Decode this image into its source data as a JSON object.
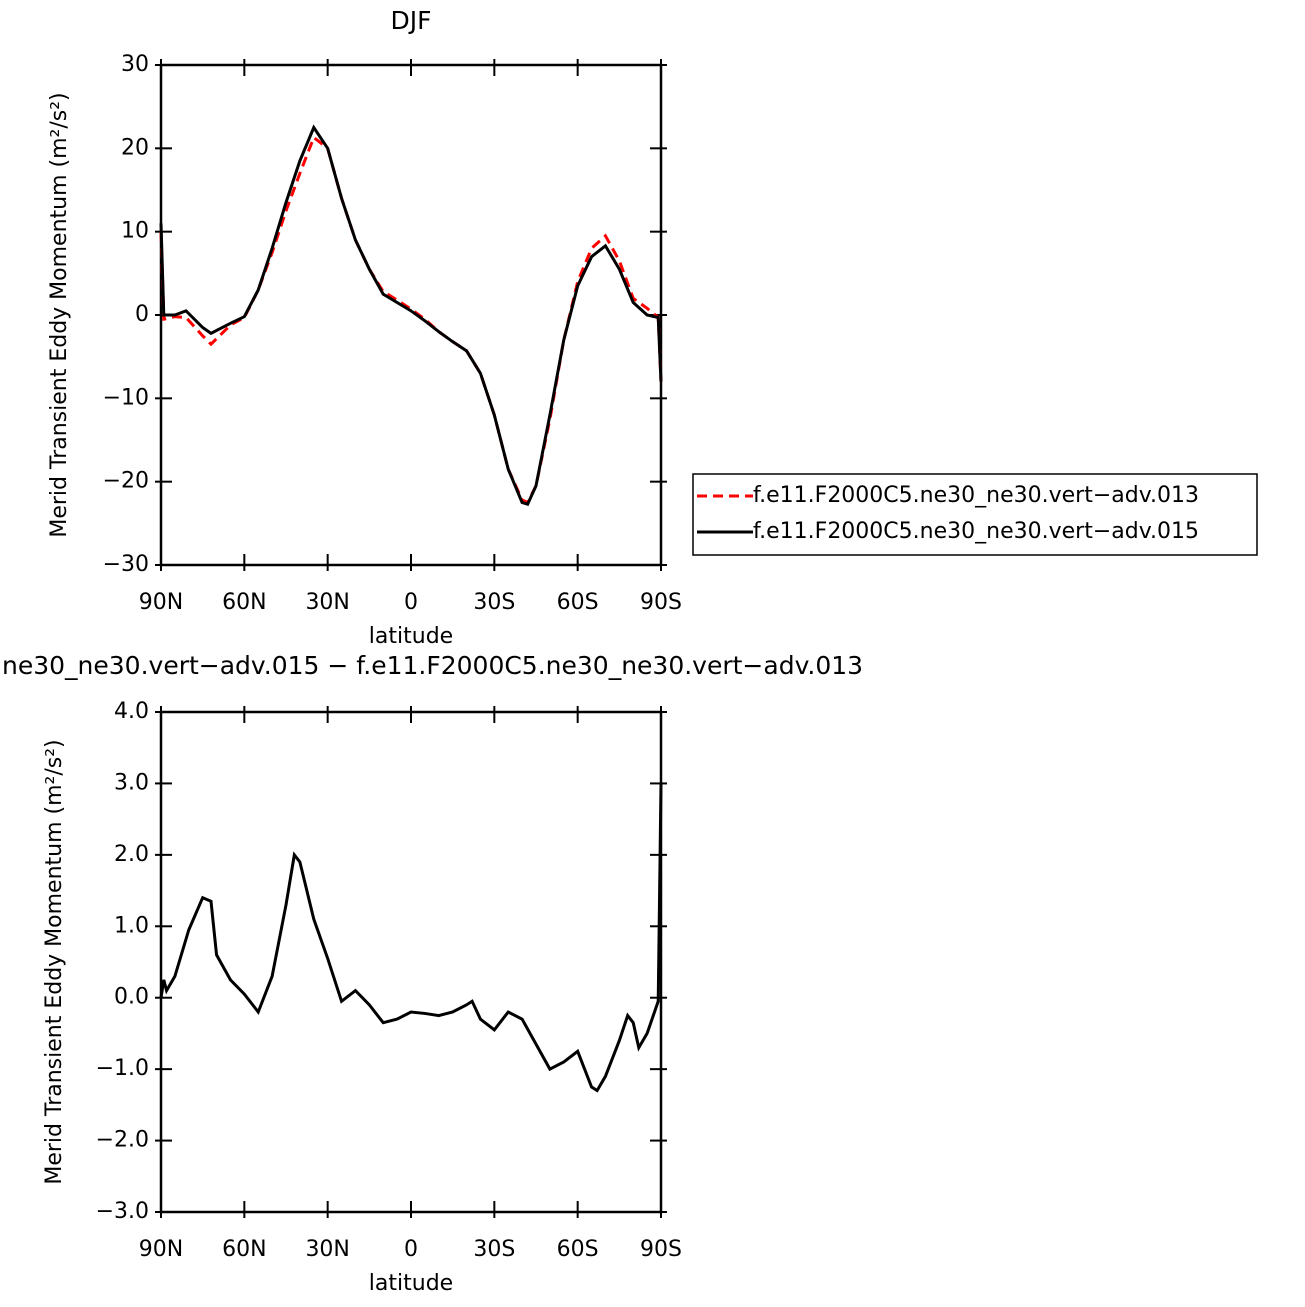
{
  "chart_data": [
    {
      "type": "line",
      "title": "DJF",
      "xlabel": "latitude",
      "ylabel": "Merid Transient Eddy Momentum (m²/s²)",
      "x": [
        90,
        89,
        85,
        81,
        75,
        72,
        65,
        60,
        55,
        50,
        45,
        40,
        35,
        30,
        25,
        20,
        15,
        10,
        5,
        0,
        -5,
        -10,
        -15,
        -20,
        -25,
        -30,
        -35,
        -40,
        -42,
        -45,
        -50,
        -55,
        -60,
        -65,
        -70,
        -75,
        -80,
        -85,
        -89,
        -90
      ],
      "series": [
        {
          "name": "f.e11.F2000C5.ne30_ne30.vert−adv.013",
          "color": "#ff0000",
          "line_style": "dashed",
          "values": [
            10,
            -0.5,
            -0.2,
            -0.3,
            -2.5,
            -3.5,
            -1.2,
            -0.3,
            3,
            7.5,
            12.5,
            17,
            21.3,
            20,
            14,
            9,
            5.5,
            2.8,
            1.8,
            0.7,
            -0.5,
            -2,
            -3.2,
            -4.3,
            -7,
            -12,
            -18.5,
            -22.2,
            -22.5,
            -20.5,
            -12.5,
            -3,
            4,
            8,
            9.5,
            6.5,
            2,
            0.8,
            -0.3,
            -8
          ]
        },
        {
          "name": "f.e11.F2000C5.ne30_ne30.vert−adv.015",
          "color": "#000000",
          "line_style": "solid",
          "values": [
            11,
            0,
            0,
            0.5,
            -1.5,
            -2.2,
            -1,
            -0.2,
            3,
            8,
            13.5,
            18.5,
            22.5,
            20,
            14,
            9,
            5.5,
            2.5,
            1.5,
            0.5,
            -0.7,
            -2,
            -3.2,
            -4.3,
            -7,
            -12,
            -18.5,
            -22.5,
            -22.7,
            -20.5,
            -12,
            -3,
            3.5,
            7,
            8.3,
            5.5,
            1.5,
            0,
            -0.3,
            -8
          ]
        }
      ],
      "xlim": [
        90,
        -90
      ],
      "xticks": [
        {
          "value": 90,
          "label": "90N"
        },
        {
          "value": 60,
          "label": "60N"
        },
        {
          "value": 30,
          "label": "30N"
        },
        0,
        {
          "value": -30,
          "label": "30S"
        },
        {
          "value": -60,
          "label": "60S"
        },
        {
          "value": -90,
          "label": "90S"
        }
      ],
      "ylim": [
        -30,
        30
      ],
      "yticks": [
        {
          "value": -30,
          "label": "−30"
        },
        {
          "value": -20,
          "label": "−20"
        },
        {
          "value": -10,
          "label": "−10"
        },
        0,
        10,
        20,
        30
      ],
      "legend": "outside right"
    },
    {
      "type": "line",
      "title": "ne30_ne30.vert−adv.015 − f.e11.F2000C5.ne30_ne30.vert−adv.013",
      "xlabel": "latitude",
      "ylabel": "Merid Transient Eddy Momentum (m²/s²)",
      "x": [
        90,
        89,
        88,
        85,
        80,
        75,
        72,
        70,
        65,
        60,
        55,
        50,
        45,
        42,
        40,
        35,
        30,
        25,
        20,
        15,
        10,
        5,
        0,
        -5,
        -10,
        -15,
        -20,
        -22,
        -25,
        -30,
        -35,
        -40,
        -45,
        -50,
        -55,
        -60,
        -65,
        -67,
        -70,
        -75,
        -78,
        -80,
        -82,
        -85,
        -89,
        -90
      ],
      "values": [
        0,
        0.25,
        0.1,
        0.3,
        0.95,
        1.4,
        1.35,
        0.6,
        0.25,
        0.05,
        -0.2,
        0.3,
        1.3,
        2.0,
        1.9,
        1.1,
        0.55,
        -0.05,
        0.1,
        -0.1,
        -0.35,
        -0.3,
        -0.2,
        -0.22,
        -0.25,
        -0.2,
        -0.1,
        -0.05,
        -0.3,
        -0.45,
        -0.2,
        -0.3,
        -0.65,
        -1.0,
        -0.9,
        -0.75,
        -1.25,
        -1.3,
        -1.1,
        -0.6,
        -0.25,
        -0.35,
        -0.7,
        -0.5,
        -0.05,
        3.0
      ],
      "color": "#000000",
      "xlim": [
        90,
        -90
      ],
      "xticks": [
        {
          "value": 90,
          "label": "90N"
        },
        {
          "value": 60,
          "label": "60N"
        },
        {
          "value": 30,
          "label": "30N"
        },
        0,
        {
          "value": -30,
          "label": "30S"
        },
        {
          "value": -60,
          "label": "60S"
        },
        {
          "value": -90,
          "label": "90S"
        }
      ],
      "ylim": [
        -3,
        4
      ],
      "yticks": [
        {
          "value": -3,
          "label": "−3.0"
        },
        {
          "value": -2,
          "label": "−2.0"
        },
        {
          "value": -1,
          "label": "−1.0"
        },
        {
          "value": 0,
          "label": "0.0"
        },
        {
          "value": 1,
          "label": "1.0"
        },
        {
          "value": 2,
          "label": "2.0"
        },
        {
          "value": 3,
          "label": "3.0"
        },
        {
          "value": 4,
          "label": "4.0"
        }
      ]
    }
  ]
}
